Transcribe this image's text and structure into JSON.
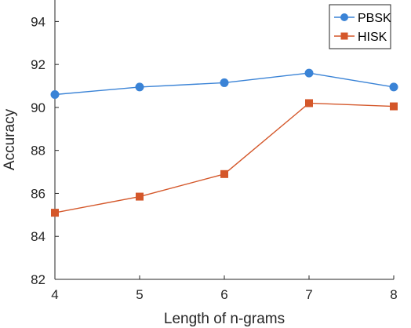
{
  "chart_data": {
    "type": "line",
    "x": [
      4,
      5,
      6,
      7,
      8
    ],
    "xlabel": "Length of n-grams",
    "ylabel": "Accuracy",
    "xlim": [
      4,
      8
    ],
    "ylim": [
      82,
      95
    ],
    "yticks": [
      82,
      84,
      86,
      88,
      90,
      92,
      94
    ],
    "xticks": [
      4,
      5,
      6,
      7,
      8
    ],
    "grid": false,
    "legend_position": "top-right",
    "series": [
      {
        "name": "PBSK",
        "color": "#3a83d6",
        "marker": "circle",
        "values": [
          90.6,
          90.95,
          91.15,
          91.6,
          90.95
        ]
      },
      {
        "name": "HISK",
        "color": "#d4572a",
        "marker": "square",
        "values": [
          85.1,
          85.85,
          86.9,
          90.2,
          90.05
        ]
      }
    ]
  }
}
